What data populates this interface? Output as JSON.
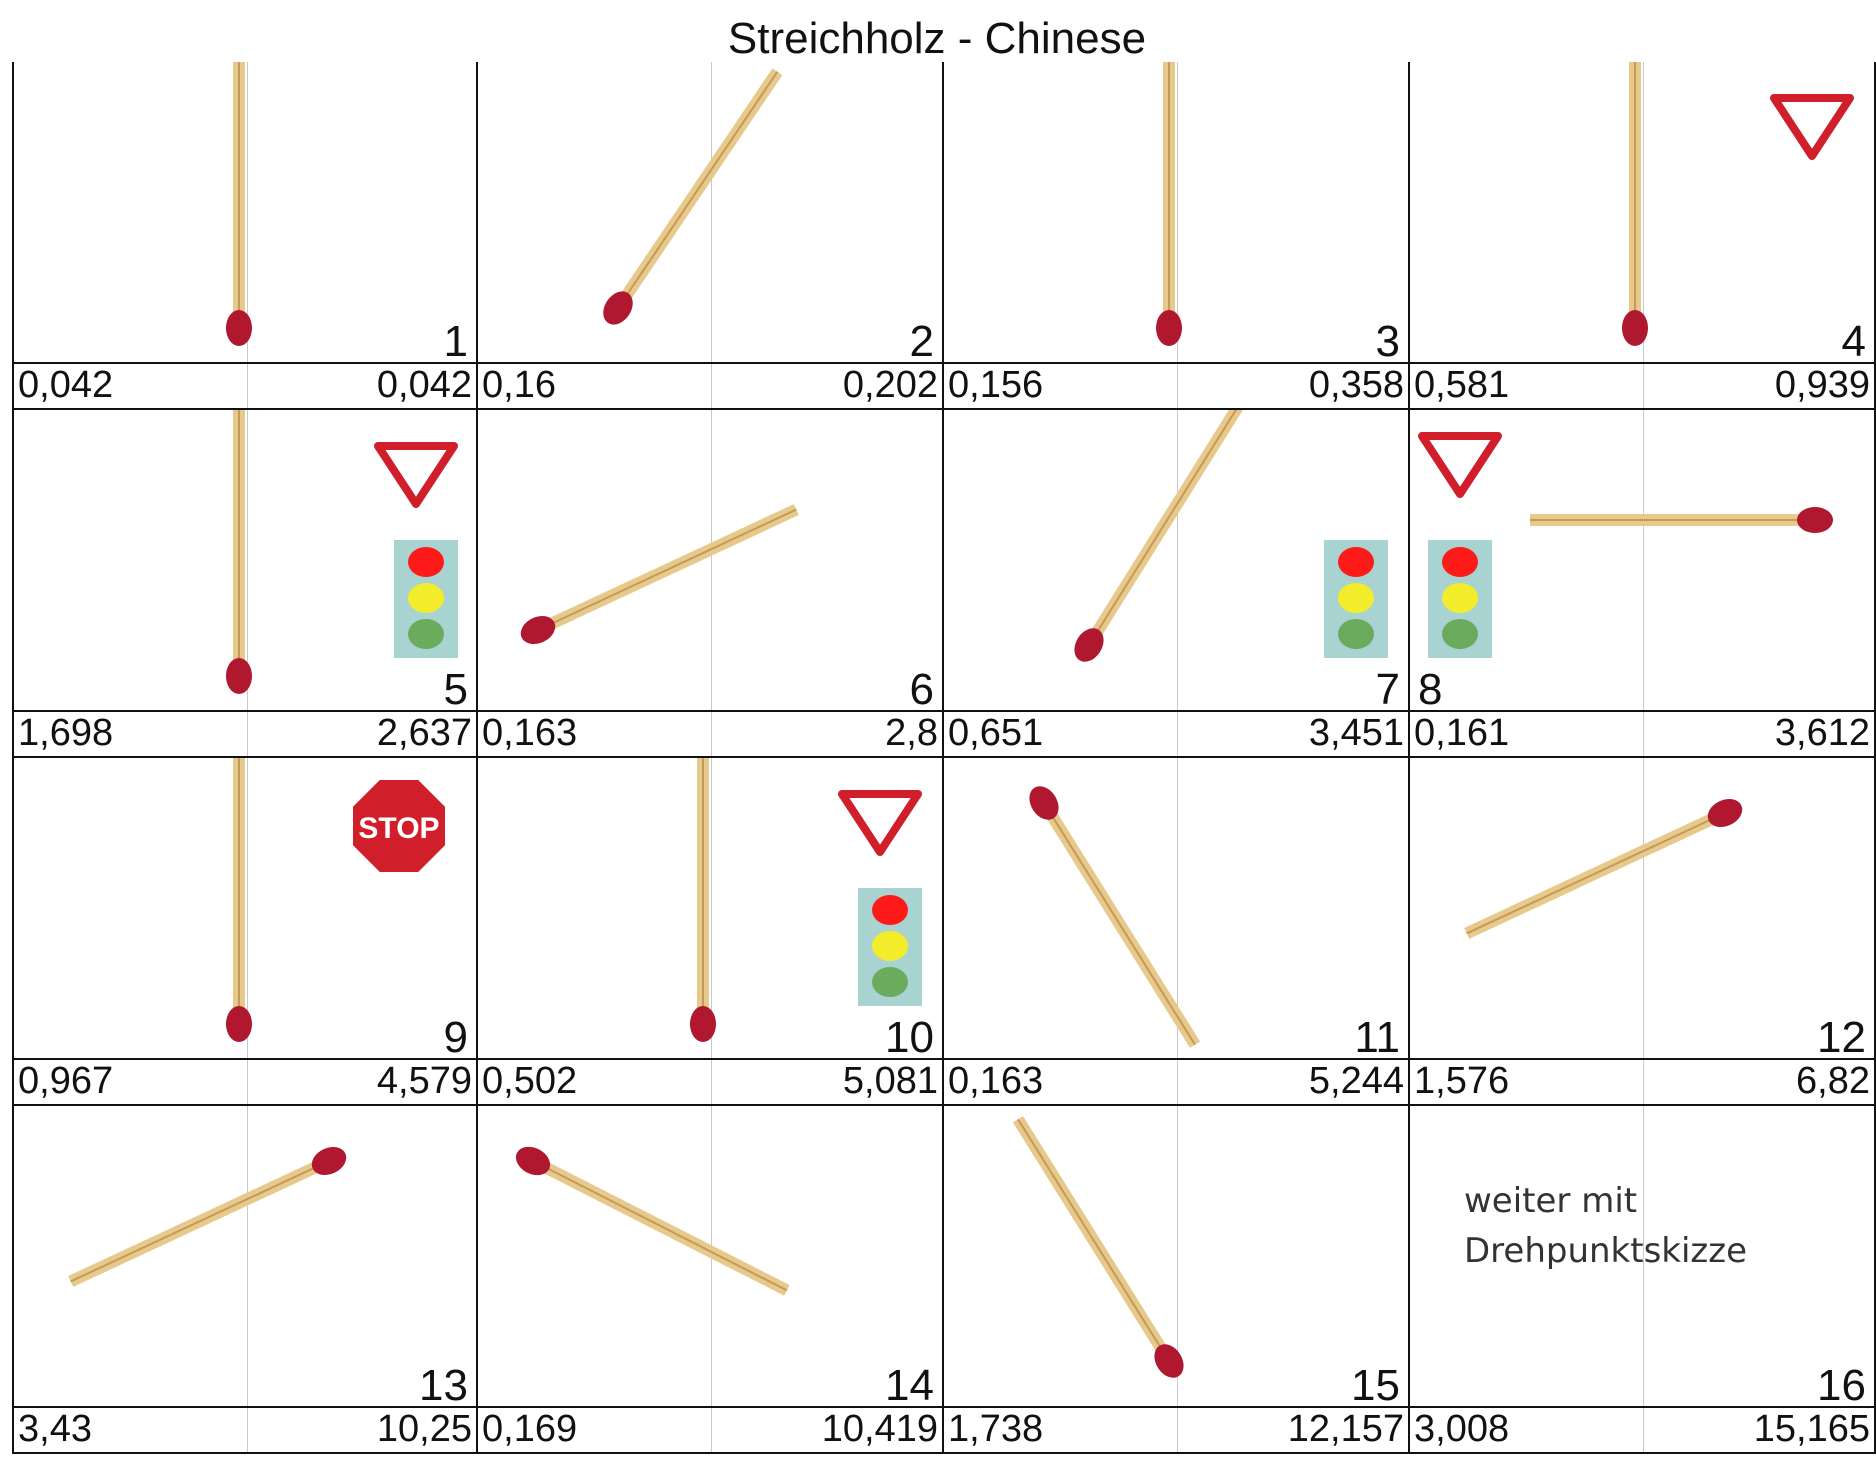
{
  "title": "Streichholz - Chinese",
  "cells": [
    {
      "num": "1",
      "v1": "0,042",
      "v2": "0,042",
      "angle": 90,
      "signs": []
    },
    {
      "num": "2",
      "v1": "0,16",
      "v2": "0,202",
      "angle": 56,
      "signs": []
    },
    {
      "num": "3",
      "v1": "0,156",
      "v2": "0,358",
      "angle": 90,
      "signs": []
    },
    {
      "num": "4",
      "v1": "0,581",
      "v2": "0,939",
      "angle": 90,
      "signs": [
        "yield"
      ]
    },
    {
      "num": "5",
      "v1": "1,698",
      "v2": "2,637",
      "angle": 90,
      "signs": [
        "yield",
        "traffic-light"
      ]
    },
    {
      "num": "6",
      "v1": "0,163",
      "v2": "2,8",
      "angle": 25,
      "signs": []
    },
    {
      "num": "7",
      "v1": "0,651",
      "v2": "3,451",
      "angle": 58,
      "signs": [
        "traffic-light"
      ]
    },
    {
      "num": "8",
      "v1": "0,161",
      "v2": "3,612",
      "angle": 180,
      "signs": [
        "yield-left",
        "traffic-light-left"
      ]
    },
    {
      "num": "9",
      "v1": "0,967",
      "v2": "4,579",
      "angle": 90,
      "signs": [
        "stop"
      ]
    },
    {
      "num": "10",
      "v1": "0,502",
      "v2": "5,081",
      "angle": 90,
      "signs": [
        "yield",
        "traffic-light"
      ]
    },
    {
      "num": "11",
      "v1": "0,163",
      "v2": "5,244",
      "angle": -58,
      "signs": []
    },
    {
      "num": "12",
      "v1": "1,576",
      "v2": "6,82",
      "angle": 205,
      "signs": []
    },
    {
      "num": "13",
      "v1": "3,43",
      "v2": "10,25",
      "angle": 205,
      "signs": []
    },
    {
      "num": "14",
      "v1": "0,169",
      "v2": "10,419",
      "angle": -27,
      "signs": []
    },
    {
      "num": "15",
      "v1": "1,738",
      "v2": "12,157",
      "angle": 122,
      "signs": []
    },
    {
      "num": "16",
      "v1": "3,008",
      "v2": "15,165",
      "angle": null,
      "signs": [],
      "note": [
        "weiter mit",
        "Drehpunktskizze"
      ]
    }
  ],
  "stop_label": "STOP",
  "colors": {
    "match_wood": "#e8c98c",
    "match_head": "#b01830",
    "sign_red": "#d01f2b",
    "light_bg": "#a9d3d1"
  }
}
